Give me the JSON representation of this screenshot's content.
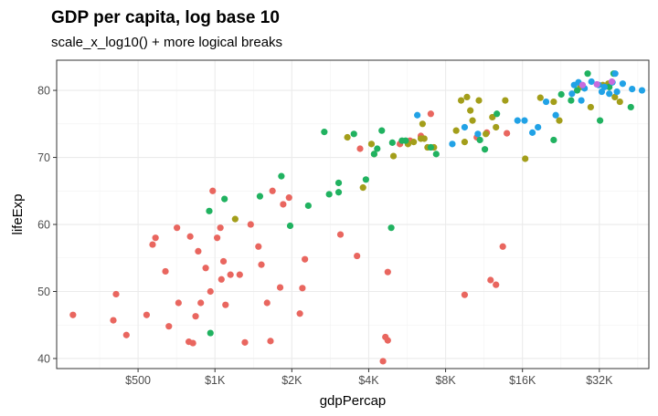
{
  "chart_data": {
    "type": "scatter",
    "title": "GDP per capita, log base 10",
    "subtitle": "scale_x_log10() + more logical breaks",
    "xlabel": "gdpPercap",
    "ylabel": "lifeExp",
    "x_scale": "log10",
    "xlim": [
      240,
      50000
    ],
    "ylim": [
      38.5,
      84.5
    ],
    "x_ticks": [
      {
        "value": 500,
        "label": "$500"
      },
      {
        "value": 1000,
        "label": "$1K"
      },
      {
        "value": 2000,
        "label": "$2K"
      },
      {
        "value": 4000,
        "label": "$4K"
      },
      {
        "value": 8000,
        "label": "$8K"
      },
      {
        "value": 16000,
        "label": "$16K"
      },
      {
        "value": 32000,
        "label": "$32K"
      }
    ],
    "y_ticks": [
      {
        "value": 40,
        "label": "40"
      },
      {
        "value": 50,
        "label": "50"
      },
      {
        "value": 60,
        "label": "60"
      },
      {
        "value": 70,
        "label": "70"
      },
      {
        "value": 80,
        "label": "80"
      }
    ],
    "grid": true,
    "legend": "none",
    "series": [
      {
        "color": "#e9665f",
        "points": [
          [
            278,
            46.5
          ],
          [
            400,
            45.7
          ],
          [
            410,
            49.6
          ],
          [
            450,
            43.5
          ],
          [
            540,
            46.5
          ],
          [
            570,
            57
          ],
          [
            585,
            58
          ],
          [
            640,
            53
          ],
          [
            660,
            44.8
          ],
          [
            710,
            59.5
          ],
          [
            720,
            48.3
          ],
          [
            790,
            42.5
          ],
          [
            800,
            58.2
          ],
          [
            820,
            42.3
          ],
          [
            840,
            46.3
          ],
          [
            860,
            56
          ],
          [
            880,
            48.3
          ],
          [
            920,
            53.5
          ],
          [
            960,
            50
          ],
          [
            980,
            65
          ],
          [
            1020,
            58
          ],
          [
            1050,
            59.5
          ],
          [
            1060,
            51.8
          ],
          [
            1080,
            54.5
          ],
          [
            1100,
            48
          ],
          [
            1150,
            52.5
          ],
          [
            1250,
            52.5
          ],
          [
            1310,
            42.4
          ],
          [
            1380,
            60
          ],
          [
            1480,
            56.7
          ],
          [
            1520,
            54
          ],
          [
            1600,
            48.3
          ],
          [
            1650,
            42.6
          ],
          [
            1680,
            65
          ],
          [
            1800,
            50.6
          ],
          [
            1850,
            63
          ],
          [
            1950,
            64
          ],
          [
            2150,
            46.7
          ],
          [
            2200,
            50.5
          ],
          [
            2250,
            54.8
          ],
          [
            3100,
            58.5
          ],
          [
            3600,
            55.3
          ],
          [
            3700,
            71.3
          ],
          [
            4550,
            39.6
          ],
          [
            4650,
            43.2
          ],
          [
            4750,
            52.9
          ],
          [
            4750,
            42.7
          ],
          [
            5300,
            72
          ],
          [
            5800,
            72.5
          ],
          [
            6400,
            73.2
          ],
          [
            7000,
            76.5
          ],
          [
            9500,
            49.5
          ],
          [
            10600,
            73
          ],
          [
            11600,
            73.7
          ],
          [
            12000,
            51.7
          ],
          [
            12600,
            51
          ],
          [
            13400,
            56.7
          ],
          [
            13900,
            73.6
          ]
        ]
      },
      {
        "color": "#a39e1a",
        "points": [
          [
            1200,
            60.8
          ],
          [
            3300,
            73
          ],
          [
            3800,
            65.5
          ],
          [
            4100,
            72
          ],
          [
            4200,
            70.5
          ],
          [
            5000,
            70.2
          ],
          [
            5700,
            72
          ],
          [
            6000,
            72.3
          ],
          [
            6400,
            72.8
          ],
          [
            6500,
            75
          ],
          [
            6600,
            72.8
          ],
          [
            6800,
            71.5
          ],
          [
            7200,
            71.5
          ],
          [
            8800,
            74
          ],
          [
            9200,
            78.5
          ],
          [
            9500,
            72.3
          ],
          [
            9700,
            79
          ],
          [
            10000,
            77
          ],
          [
            10200,
            75.5
          ],
          [
            10800,
            78.5
          ],
          [
            11500,
            73.5
          ],
          [
            12200,
            76
          ],
          [
            12600,
            74.5
          ],
          [
            13700,
            78.5
          ],
          [
            16400,
            69.8
          ],
          [
            18800,
            78.9
          ],
          [
            21200,
            78.3
          ],
          [
            22300,
            75.5
          ],
          [
            27000,
            80.5
          ],
          [
            29600,
            77.5
          ],
          [
            33000,
            80.8
          ],
          [
            34700,
            81
          ],
          [
            36800,
            79
          ],
          [
            38500,
            78.3
          ]
        ]
      },
      {
        "color": "#20b260",
        "points": [
          [
            950,
            62
          ],
          [
            960,
            43.8
          ],
          [
            1090,
            63.8
          ],
          [
            1500,
            64.2
          ],
          [
            1820,
            67.2
          ],
          [
            1970,
            59.8
          ],
          [
            2320,
            62.8
          ],
          [
            2680,
            73.8
          ],
          [
            2800,
            64.5
          ],
          [
            3050,
            66.2
          ],
          [
            3050,
            64.8
          ],
          [
            3500,
            73.5
          ],
          [
            3900,
            66.7
          ],
          [
            4200,
            70.5
          ],
          [
            4320,
            71.3
          ],
          [
            4500,
            74
          ],
          [
            4900,
            59.5
          ],
          [
            4950,
            72.2
          ],
          [
            5400,
            72.5
          ],
          [
            5580,
            72.5
          ],
          [
            7000,
            71.5
          ],
          [
            7350,
            70.5
          ],
          [
            10900,
            72.6
          ],
          [
            11400,
            71.2
          ],
          [
            12700,
            76.5
          ],
          [
            21200,
            72.6
          ],
          [
            22700,
            79.4
          ],
          [
            24800,
            78.5
          ],
          [
            26200,
            80
          ],
          [
            28800,
            82.5
          ],
          [
            32200,
            75.5
          ],
          [
            35000,
            80.5
          ],
          [
            36400,
            82.5
          ],
          [
            42500,
            77.5
          ]
        ]
      },
      {
        "color": "#21a2e6",
        "points": [
          [
            6200,
            76.3
          ],
          [
            8500,
            72
          ],
          [
            9500,
            74.5
          ],
          [
            10700,
            73.5
          ],
          [
            15300,
            75.5
          ],
          [
            16300,
            75.5
          ],
          [
            17500,
            73.7
          ],
          [
            18400,
            74.5
          ],
          [
            19800,
            78.3
          ],
          [
            21600,
            76.3
          ],
          [
            25000,
            79.5
          ],
          [
            25500,
            80.8
          ],
          [
            26500,
            81.2
          ],
          [
            27200,
            78.5
          ],
          [
            28000,
            80.3
          ],
          [
            29800,
            81.3
          ],
          [
            31800,
            80.8
          ],
          [
            32700,
            79.8
          ],
          [
            33500,
            80.5
          ],
          [
            35000,
            79.5
          ],
          [
            36000,
            81.2
          ],
          [
            36900,
            82.5
          ],
          [
            37500,
            79.8
          ],
          [
            39500,
            81
          ],
          [
            43000,
            80.2
          ],
          [
            47000,
            80
          ]
        ]
      },
      {
        "color": "#c86bde",
        "points": [
          [
            27500,
            80.8
          ],
          [
            31300,
            80.9
          ],
          [
            35800,
            81.3
          ]
        ]
      }
    ]
  }
}
